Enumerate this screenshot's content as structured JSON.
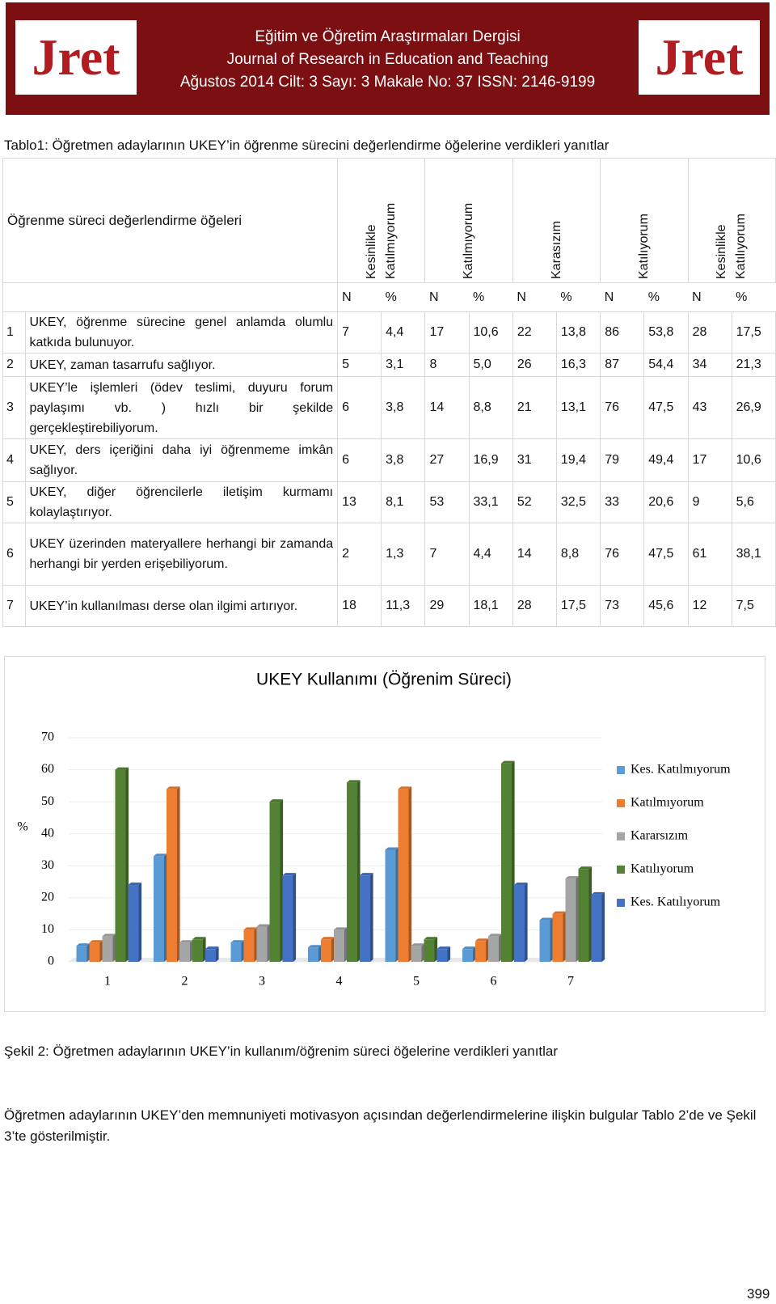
{
  "header": {
    "logo": "Jret",
    "lines": [
      "Eğitim ve Öğretim Araştırmaları Dergisi",
      "Journal of Research in Education and Teaching",
      "Ağustos 2014  Cilt: 3  Sayı: 3  Makale No: 37   ISSN: 2146-9199"
    ]
  },
  "table": {
    "caption": "Tablo1: Öğretmen adaylarının UKEY’in öğrenme sürecini değerlendirme öğelerine verdikleri yanıtlar",
    "corner": "Öğrenme süreci değerlendirme öğeleri",
    "columns": [
      [
        "Kesinlikle",
        "Katılmıyorum"
      ],
      [
        "Katılmıyorum"
      ],
      [
        "Karasızım"
      ],
      [
        "Katılıyorum"
      ],
      [
        "Kesinlikle",
        "Katılıyorum"
      ]
    ],
    "subheaders": [
      "N",
      "%"
    ],
    "rows": [
      [
        "1",
        "UKEY, öğrenme sürecine genel anlamda olumlu katkıda bulunuyor.",
        "7",
        "4,4",
        "17",
        "10,6",
        "22",
        "13,8",
        "86",
        "53,8",
        "28",
        "17,5"
      ],
      [
        "2",
        "UKEY, zaman tasarrufu sağlıyor.",
        "5",
        "3,1",
        "8",
        "5,0",
        "26",
        "16,3",
        "87",
        "54,4",
        "34",
        "21,3"
      ],
      [
        "3",
        "UKEY’le işlemleri (ödev teslimi, duyuru forum paylaşımı vb. ) hızlı bir şekilde gerçekleştirebiliyorum.",
        "6",
        "3,8",
        "14",
        "8,8",
        "21",
        "13,1",
        "76",
        "47,5",
        "43",
        "26,9"
      ],
      [
        "4",
        "UKEY, ders içeriğini daha iyi öğrenmeme imkân sağlıyor.",
        "6",
        "3,8",
        "27",
        "16,9",
        "31",
        "19,4",
        "79",
        "49,4",
        "17",
        "10,6"
      ],
      [
        "5",
        "UKEY, diğer öğrencilerle iletişim kurmamı kolaylaştırıyor.",
        "13",
        "8,1",
        "53",
        "33,1",
        "52",
        "32,5",
        "33",
        "20,6",
        "9",
        "5,6"
      ],
      [
        "6",
        "UKEY üzerinden materyallere herhangi bir zamanda herhangi bir yerden erişebiliyorum.",
        "2",
        "1,3",
        "7",
        "4,4",
        "14",
        "8,8",
        "76",
        "47,5",
        "61",
        "38,1"
      ],
      [
        "7",
        "UKEY’in kullanılması derse olan ilgimi artırıyor.",
        "18",
        "11,3",
        "29",
        "18,1",
        "28",
        "17,5",
        "73",
        "45,6",
        "12",
        "7,5"
      ]
    ]
  },
  "chart_data": {
    "type": "bar",
    "title": "UKEY Kullanımı (Öğrenim Süreci)",
    "y_label": "%",
    "categories": [
      "1",
      "2",
      "3",
      "4",
      "5",
      "6",
      "7"
    ],
    "series": [
      {
        "name": "Kes. Katılmıyorum",
        "color": "#5b9bd5",
        "values": [
          5,
          33,
          6,
          4.5,
          35,
          4,
          13
        ]
      },
      {
        "name": "Katılmıyorum",
        "color": "#ed7d31",
        "values": [
          6,
          54,
          10,
          7,
          54,
          6.5,
          15
        ]
      },
      {
        "name": "Kararsızım",
        "color": "#a5a5a5",
        "values": [
          8,
          6,
          11,
          10,
          5,
          8,
          26
        ]
      },
      {
        "name": "Katılıyorum",
        "color": "#548235",
        "values": [
          60,
          7,
          50,
          56,
          7,
          62,
          29
        ]
      },
      {
        "name": "Kes. Katılıyorum",
        "color": "#4472c4",
        "values": [
          24,
          4,
          27,
          27,
          4,
          24,
          21
        ]
      }
    ],
    "ylim": [
      0,
      70
    ],
    "yticks": [
      0,
      10,
      20,
      30,
      40,
      50,
      60,
      70
    ],
    "legend": "right"
  },
  "figure_caption": "Şekil 2: Öğretmen adaylarının UKEY’in kullanım/öğrenim süreci öğelerine verdikleri yanıtlar",
  "paragraph": "Öğretmen adaylarının UKEY’den memnuniyeti motivasyon açısından değerlendirmelerine ilişkin bulgular Tablo 2’de ve Şekil 3’te gösterilmiştir.",
  "page_number": "399"
}
